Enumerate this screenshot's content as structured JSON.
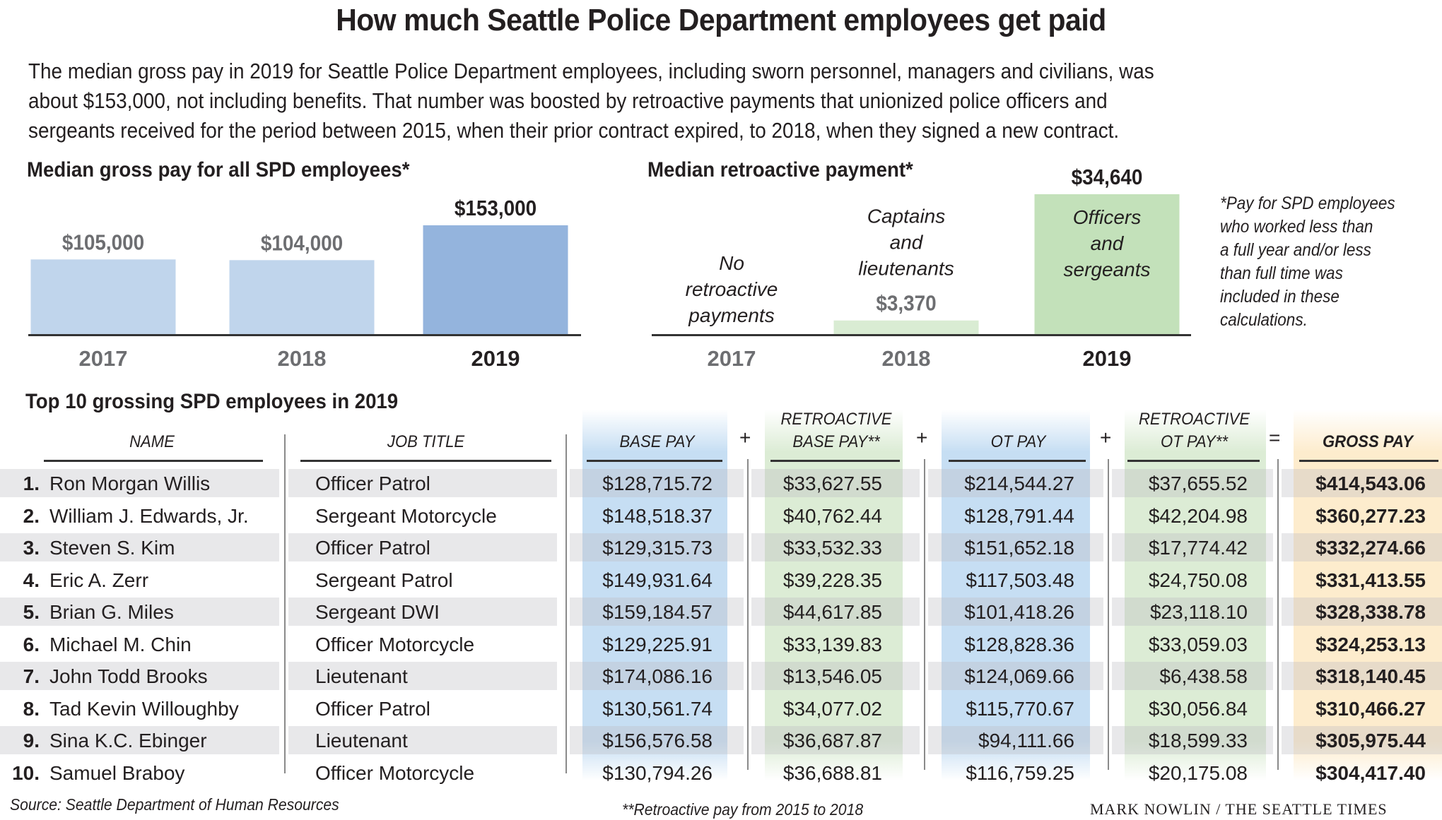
{
  "header": {
    "title": "How much Seattle Police Department employees get paid",
    "intro_lines": [
      "The median gross pay in 2019 for Seattle Police Department employees, including sworn personnel, managers and civilians, was",
      "about $153,000, not including benefits. That number was boosted by retroactive payments that unionized police officers and",
      "sergeants received for the period between 2015, when their prior contract expired, to 2018, when they signed a new contract."
    ]
  },
  "chart_data": [
    {
      "type": "bar",
      "title": "Median gross pay for all SPD employees*",
      "categories": [
        "2017",
        "2018",
        "2019"
      ],
      "values": [
        105000,
        104000,
        153000
      ],
      "value_labels": [
        "$105,000",
        "$104,000",
        "$153,000"
      ],
      "highlight": "2019",
      "xlabel": "",
      "ylabel": "",
      "ylim": [
        0,
        153000
      ],
      "grid": false,
      "colors": {
        "normal": "#c0d5ec",
        "highlight": "#94b4dd",
        "label_normal": "#6d6e71",
        "label_highlight": "#231f20"
      }
    },
    {
      "type": "bar",
      "title": "Median retroactive payment*",
      "categories": [
        "2017",
        "2018",
        "2019"
      ],
      "values": [
        0,
        3370,
        34640
      ],
      "value_labels": [
        "",
        "$3,370",
        "$34,640"
      ],
      "group_labels": [
        [
          "No",
          "retroactive",
          "payments"
        ],
        [
          "Captains",
          "and",
          "lieutenants"
        ],
        [
          "Officers",
          "and",
          "sergeants"
        ]
      ],
      "highlight": "2019",
      "xlabel": "",
      "ylabel": "",
      "ylim": [
        0,
        34640
      ],
      "grid": false,
      "colors": {
        "normal": "#d9ecd3",
        "highlight": "#c3e1ba",
        "label_normal": "#6d6e71",
        "label_highlight": "#231f20"
      }
    },
    {
      "type": "table",
      "title": "Top 10 grossing SPD employees in 2019",
      "columns": [
        "NAME",
        "JOB TITLE",
        "BASE PAY",
        "RETROACTIVE BASE PAY**",
        "OT PAY",
        "RETROACTIVE OT PAY**",
        "GROSS PAY"
      ],
      "column_head_lines": [
        [
          "NAME"
        ],
        [
          "JOB TITLE"
        ],
        [
          "BASE PAY"
        ],
        [
          "RETROACTIVE",
          "BASE PAY**"
        ],
        [
          "OT PAY"
        ],
        [
          "RETROACTIVE",
          "OT PAY**"
        ],
        [
          "GROSS PAY"
        ]
      ],
      "operators": [
        "+",
        "+",
        "+",
        "="
      ],
      "rows": [
        {
          "rank": "1.",
          "name": "Ron Morgan Willis",
          "job": "Officer Patrol",
          "base": "$128,715.72",
          "retro_base": "$33,627.55",
          "ot": "$214,544.27",
          "retro_ot": "$37,655.52",
          "gross": "$414,543.06"
        },
        {
          "rank": "2.",
          "name": "William J. Edwards, Jr.",
          "job": "Sergeant Motorcycle",
          "base": "$148,518.37",
          "retro_base": "$40,762.44",
          "ot": "$128,791.44",
          "retro_ot": "$42,204.98",
          "gross": "$360,277.23"
        },
        {
          "rank": "3.",
          "name": "Steven S. Kim",
          "job": "Officer Patrol",
          "base": "$129,315.73",
          "retro_base": "$33,532.33",
          "ot": "$151,652.18",
          "retro_ot": "$17,774.42",
          "gross": "$332,274.66"
        },
        {
          "rank": "4.",
          "name": "Eric A. Zerr",
          "job": "Sergeant Patrol",
          "base": "$149,931.64",
          "retro_base": "$39,228.35",
          "ot": "$117,503.48",
          "retro_ot": "$24,750.08",
          "gross": "$331,413.55"
        },
        {
          "rank": "5.",
          "name": "Brian G. Miles",
          "job": "Sergeant DWI",
          "base": "$159,184.57",
          "retro_base": "$44,617.85",
          "ot": "$101,418.26",
          "retro_ot": "$23,118.10",
          "gross": "$328,338.78"
        },
        {
          "rank": "6.",
          "name": "Michael M. Chin",
          "job": "Officer Motorcycle",
          "base": "$129,225.91",
          "retro_base": "$33,139.83",
          "ot": "$128,828.36",
          "retro_ot": "$33,059.03",
          "gross": "$324,253.13"
        },
        {
          "rank": "7.",
          "name": "John Todd Brooks",
          "job": "Lieutenant",
          "base": "$174,086.16",
          "retro_base": "$13,546.05",
          "ot": "$124,069.66",
          "retro_ot": "$6,438.58",
          "gross": "$318,140.45"
        },
        {
          "rank": "8.",
          "name": "Tad Kevin Willoughby",
          "job": "Officer Patrol",
          "base": "$130,561.74",
          "retro_base": "$34,077.02",
          "ot": "$115,770.67",
          "retro_ot": "$30,056.84",
          "gross": "$310,466.27"
        },
        {
          "rank": "9.",
          "name": "Sina K.C. Ebinger",
          "job": "Lieutenant",
          "base": "$156,576.58",
          "retro_base": "$36,687.87",
          "ot": "$94,111.66",
          "retro_ot": "$18,599.33",
          "gross": "$305,975.44"
        },
        {
          "rank": "10.",
          "name": "Samuel Braboy",
          "job": "Officer Motorcycle",
          "base": "$130,794.26",
          "retro_base": "$36,688.81",
          "ot": "$116,759.25",
          "retro_ot": "$20,175.08",
          "gross": "$304,417.40"
        }
      ]
    }
  ],
  "notes": {
    "asterisk_note": "*Pay for SPD employees who worked less than a full year and/or less than full time was included in these calculations.",
    "asterisk_lines": [
      "*Pay for SPD employees",
      "who worked less than",
      "a full year and/or less",
      "than full time was",
      "included in these",
      "calculations."
    ],
    "double_asterisk_note": "**Retroactive pay from 2015 to 2018",
    "source": "Source: Seattle Department of Human Resources",
    "credit": "MARK NOWLIN / THE SEATTLE TIMES"
  }
}
